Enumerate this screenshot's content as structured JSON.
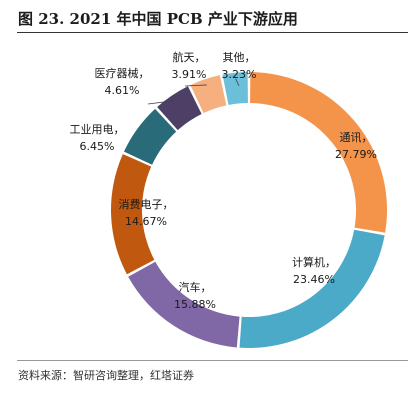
{
  "header": {
    "title": "图 23. 2021 年中国 PCB 产业下游应用"
  },
  "footer": {
    "source": "资料来源：智研咨询整理，红塔证券"
  },
  "chart_data": {
    "type": "pie",
    "title": "图 23. 2021 年中国 PCB 产业下游应用",
    "categories": [
      "通讯",
      "计算机",
      "汽车",
      "消费电子",
      "工业用电",
      "医疗器械",
      "航天",
      "其他"
    ],
    "values": [
      27.79,
      23.46,
      15.88,
      14.67,
      6.45,
      4.61,
      3.91,
      3.23
    ],
    "value_labels": [
      "27.79%",
      "23.46%",
      "15.88%",
      "14.67%",
      "6.45%",
      "4.61%",
      "3.91%",
      "3.23%"
    ],
    "colors": [
      "#F4934A",
      "#4BAAC8",
      "#8068A6",
      "#C0580F",
      "#2A6B7A",
      "#4E3F66",
      "#F6B07F",
      "#6CBFD8"
    ],
    "donut": true,
    "legend": "none"
  }
}
